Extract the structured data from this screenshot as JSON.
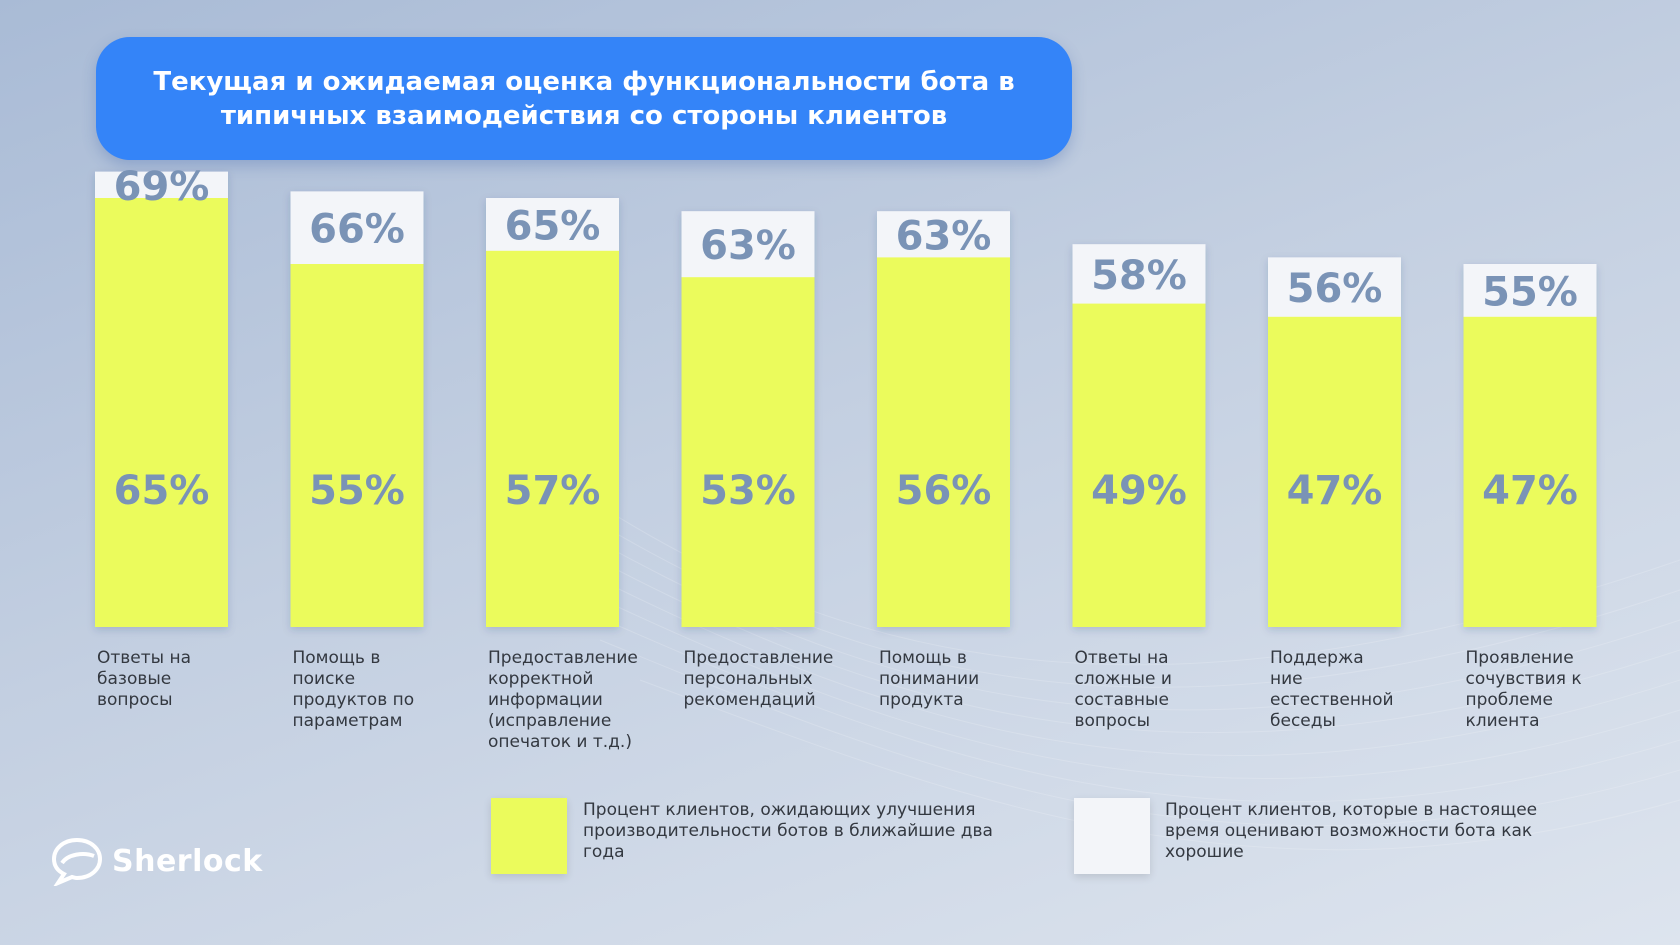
{
  "header": {
    "title": "Текущая и ожидаемая оценка функциональности бота в типичных взаимодействия со стороны клиентов"
  },
  "chart_data": {
    "type": "bar",
    "title": "Текущая и ожидаемая оценка функциональности бота в типичных взаимодействия со стороны клиентов",
    "categories": [
      "Ответы на базовые вопросы",
      "Помощь в поиске продуктов по параметрам",
      "Предоставление корректной информации (исправление опечаток и т.д.)",
      "Предоставление персональных рекомендаций",
      "Помощь в понимании продукта",
      "Ответы на сложные и составные вопросы",
      "Поддержание естественной беседы",
      "Проявление сочувствия к проблеме клиента"
    ],
    "category_labels": [
      "Ответы на\nбазовые\nвопросы",
      "Помощь в\nпоиске\nпродуктов по\nпараметрам",
      "Предоставление\nкорректной\nинформации\n(исправление\nопечаток и т.д.)",
      "Предоставление\nперсональных\nрекомендаций",
      "Помощь в\nпонимании\nпродукта",
      "Ответы на\nсложные и\nсоставные\nвопросы",
      "Поддержа\nние\nестественной\nбеседы",
      "Проявление\nсочувствия к\nпроблеме\nклиента"
    ],
    "series": [
      {
        "name": "Процент клиентов, ожидающих улучшения производительности ботов в ближайшие два года",
        "color": "#ebfb5c",
        "values": [
          65,
          55,
          57,
          53,
          56,
          49,
          47,
          47
        ],
        "labels": [
          "65%",
          "55%",
          "57%",
          "53%",
          "56%",
          "49%",
          "47%",
          "47%"
        ]
      },
      {
        "name": "Процент клиентов, которые в настоящее время оценивают возможности бота как хорошие",
        "color": "#f3f5f9",
        "values": [
          69,
          66,
          65,
          63,
          63,
          58,
          56,
          55
        ],
        "labels": [
          "69%",
          "66%",
          "65%",
          "63%",
          "63%",
          "58%",
          "56%",
          "55%"
        ]
      }
    ],
    "ylim": [
      0,
      75
    ],
    "grid": false,
    "legend_position": "bottom"
  },
  "legend": {
    "items": [
      {
        "color": "#ebfb5c",
        "text": "Процент клиентов, ожидающих улучшения производительности ботов в ближайшие два года"
      },
      {
        "color": "#f3f5f9",
        "text": "Процент клиентов, которые в настоящее время оценивают возможности бота как хорошие"
      }
    ]
  },
  "logo": {
    "name": "Sherlock",
    "icon": "speech-bubble-icon"
  }
}
